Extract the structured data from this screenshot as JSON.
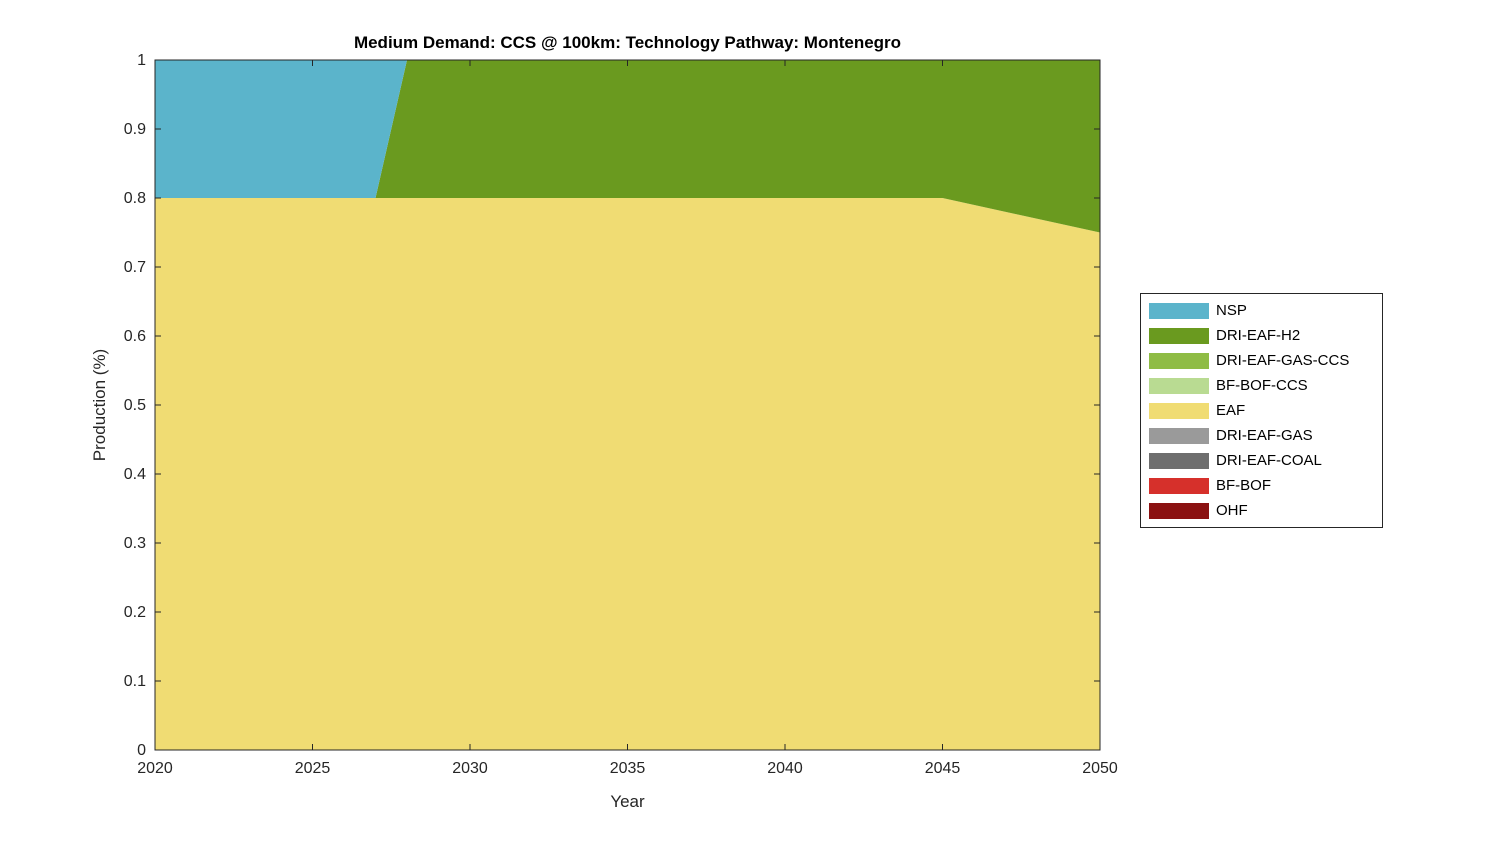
{
  "chart_data": {
    "type": "area",
    "stacked": true,
    "title": "Medium Demand: CCS @ 100km: Technology Pathway: Montenegro",
    "xlabel": "Year",
    "ylabel": "Production (%)",
    "xlim": [
      2020,
      2050
    ],
    "ylim": [
      0,
      1
    ],
    "x_ticks": [
      2020,
      2025,
      2030,
      2035,
      2040,
      2045,
      2050
    ],
    "y_ticks": [
      0,
      0.1,
      0.2,
      0.3,
      0.4,
      0.5,
      0.6,
      0.7,
      0.8,
      0.9,
      1
    ],
    "y_tick_labels": [
      "0",
      "0.1",
      "0.2",
      "0.3",
      "0.4",
      "0.5",
      "0.6",
      "0.7",
      "0.8",
      "0.9",
      "1"
    ],
    "grid": false,
    "legend_position": "right-outside",
    "axis_color": "#262626",
    "x": [
      2020,
      2027,
      2028,
      2045,
      2050
    ],
    "series": [
      {
        "name": "NSP",
        "color": "#5BB4CB",
        "values": [
          0.2,
          0.2,
          0,
          0,
          0
        ]
      },
      {
        "name": "DRI-EAF-H2",
        "color": "#6A9A1F",
        "values": [
          0,
          0,
          0.2,
          0.2,
          0.25
        ]
      },
      {
        "name": "DRI-EAF-GAS-CCS",
        "color": "#8FBC45",
        "values": [
          0,
          0,
          0,
          0,
          0
        ]
      },
      {
        "name": "BF-BOF-CCS",
        "color": "#B9DB92",
        "values": [
          0,
          0,
          0,
          0,
          0
        ]
      },
      {
        "name": "EAF",
        "color": "#F0DC73",
        "values": [
          0.8,
          0.8,
          0.8,
          0.8,
          0.75
        ]
      },
      {
        "name": "DRI-EAF-GAS",
        "color": "#9A9A9A",
        "values": [
          0,
          0,
          0,
          0,
          0
        ]
      },
      {
        "name": "DRI-EAF-COAL",
        "color": "#6E6E6E",
        "values": [
          0,
          0,
          0,
          0,
          0
        ]
      },
      {
        "name": "BF-BOF",
        "color": "#D6302B",
        "values": [
          0,
          0,
          0,
          0,
          0
        ]
      },
      {
        "name": "OHF",
        "color": "#8B1111",
        "values": [
          0,
          0,
          0,
          0,
          0
        ]
      }
    ],
    "stack_order": "bottom-to-top is reverse of series list; legend lists top series first"
  }
}
